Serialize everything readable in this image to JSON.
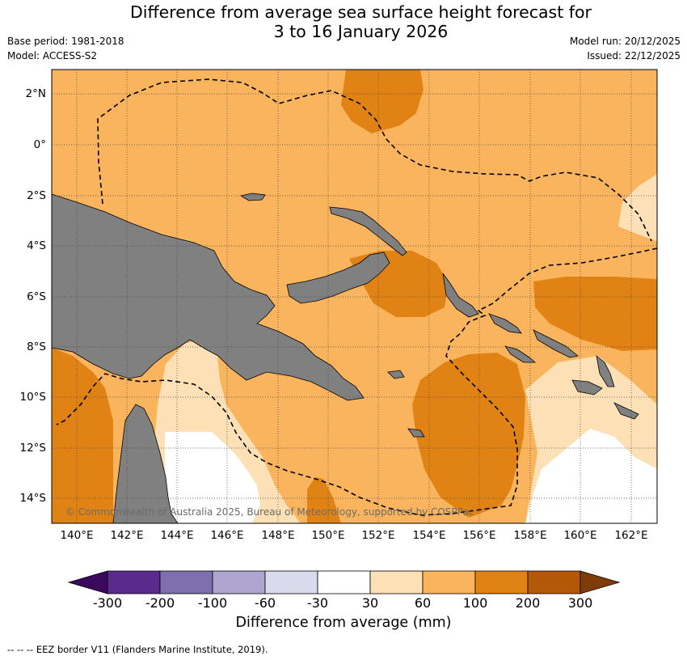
{
  "title_line1": "Difference from average sea surface height forecast for",
  "title_line2": "3 to 16 January 2026",
  "base_period": "Base period: 1981-2018",
  "model": "Model: ACCESS-S2",
  "model_run": "Model run: 20/12/2025",
  "issued": "Issued: 22/12/2025",
  "copyright": "© Commonwealth of Australia 2025, Bureau of Meteorology, supported by COSPPac",
  "lat_labels": [
    "2°N",
    "0°",
    "2°S",
    "4°S",
    "6°S",
    "8°S",
    "10°S",
    "12°S",
    "14°S"
  ],
  "lon_labels": [
    "140°E",
    "142°E",
    "144°E",
    "146°E",
    "148°E",
    "150°E",
    "152°E",
    "154°E",
    "156°E",
    "158°E",
    "160°E",
    "162°E"
  ],
  "colorbar": {
    "label": "Difference from average (mm)",
    "ticks": [
      "-300",
      "-200",
      "-100",
      "-60",
      "-30",
      "30",
      "60",
      "100",
      "200",
      "300"
    ],
    "colors": [
      "#3b0a5e",
      "#5a2b8c",
      "#7f6fae",
      "#afa6d0",
      "#d9daeb",
      "#ffffff",
      "#fee0b6",
      "#f9b45d",
      "#e08214",
      "#b35806",
      "#7f3b08"
    ]
  },
  "legend": {
    "eez_marker": "-- -- --",
    "eez_text": "EEZ border V11 (Flanders Marine Institute, 2019)."
  },
  "colors": {
    "land": "#808080",
    "ocean_base": "#f9b45d",
    "ocean_100_200": "#e08214",
    "ocean_30_60": "#fee0b6",
    "ocean_neutral": "#ffffff"
  }
}
